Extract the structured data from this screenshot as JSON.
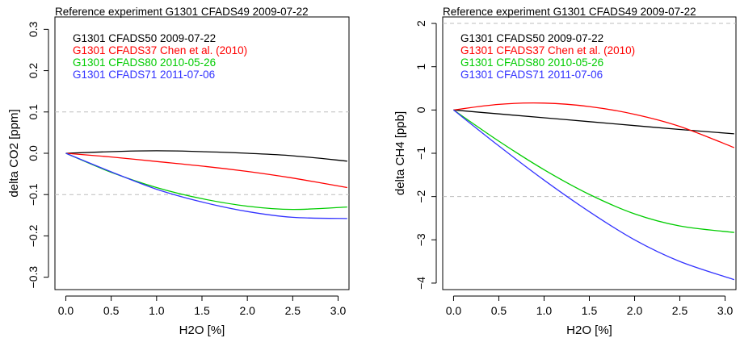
{
  "chart_data": [
    {
      "type": "line",
      "title": "Reference experiment G1301 CFADS49 2009-07-22",
      "xlabel": "H2O [%]",
      "ylabel": "delta CO2 [ppm]",
      "xlim": [
        -0.12,
        3.12
      ],
      "ylim": [
        -0.33,
        0.33
      ],
      "xticks": [
        0.0,
        0.5,
        1.0,
        1.5,
        2.0,
        2.5,
        3.0
      ],
      "xtick_labels": [
        "0.0",
        "0.5",
        "1.0",
        "1.5",
        "2.0",
        "2.5",
        "3.0"
      ],
      "yticks": [
        -0.3,
        -0.2,
        -0.1,
        0.0,
        0.1,
        0.2,
        0.3
      ],
      "ytick_labels": [
        "-0.3",
        "-0.2",
        "-0.1",
        "0.0",
        "0.1",
        "0.2",
        "0.3"
      ],
      "reference_lines_y": [
        0.1,
        -0.1
      ],
      "grid": false,
      "legend_position": "top-left",
      "series": [
        {
          "name": "G1301 CFADS50 2009-07-22",
          "color": "#000000",
          "x": [
            0.0,
            0.5,
            1.0,
            1.5,
            2.0,
            2.5,
            3.1
          ],
          "y": [
            0.0,
            0.004,
            0.006,
            0.004,
            0.0,
            -0.006,
            -0.019
          ]
        },
        {
          "name": "G1301 CFADS37 Chen et al. (2010)",
          "color": "#ff0000",
          "x": [
            0.0,
            0.5,
            1.0,
            1.5,
            2.0,
            2.5,
            3.1
          ],
          "y": [
            0.0,
            -0.009,
            -0.02,
            -0.031,
            -0.044,
            -0.06,
            -0.083
          ]
        },
        {
          "name": "G1301 CFADS80 2010-05-26",
          "color": "#00cc00",
          "x": [
            0.0,
            0.5,
            1.0,
            1.5,
            2.0,
            2.5,
            3.1
          ],
          "y": [
            0.0,
            -0.046,
            -0.083,
            -0.11,
            -0.128,
            -0.136,
            -0.13
          ]
        },
        {
          "name": "G1301 CFADS71 2011-07-06",
          "color": "#3333ff",
          "x": [
            0.0,
            0.5,
            1.0,
            1.5,
            2.0,
            2.5,
            3.1
          ],
          "y": [
            0.0,
            -0.045,
            -0.087,
            -0.118,
            -0.141,
            -0.155,
            -0.158
          ]
        }
      ]
    },
    {
      "type": "line",
      "title": "Reference experiment G1301 CFADS49 2009-07-22",
      "xlabel": "H2O [%]",
      "ylabel": "delta CH4 [ppb]",
      "xlim": [
        -0.12,
        3.12
      ],
      "ylim": [
        -4.15,
        2.15
      ],
      "xticks": [
        0.0,
        0.5,
        1.0,
        1.5,
        2.0,
        2.5,
        3.0
      ],
      "xtick_labels": [
        "0.0",
        "0.5",
        "1.0",
        "1.5",
        "2.0",
        "2.5",
        "3.0"
      ],
      "yticks": [
        -4,
        -3,
        -2,
        -1,
        0,
        1,
        2
      ],
      "ytick_labels": [
        "-4",
        "-3",
        "-2",
        "-1",
        "0",
        "1",
        "2"
      ],
      "reference_lines_y": [
        2,
        -2
      ],
      "grid": false,
      "legend_position": "top-left",
      "series": [
        {
          "name": "G1301 CFADS50 2009-07-22",
          "color": "#000000",
          "x": [
            0.0,
            0.5,
            1.0,
            1.5,
            2.0,
            2.5,
            3.1
          ],
          "y": [
            0.0,
            -0.09,
            -0.18,
            -0.27,
            -0.36,
            -0.45,
            -0.55
          ]
        },
        {
          "name": "G1301 CFADS37 Chen et al. (2010)",
          "color": "#ff0000",
          "x": [
            0.0,
            0.5,
            1.0,
            1.5,
            2.0,
            2.5,
            3.1
          ],
          "y": [
            0.0,
            0.13,
            0.16,
            0.08,
            -0.1,
            -0.38,
            -0.87
          ]
        },
        {
          "name": "G1301 CFADS80 2010-05-26",
          "color": "#00cc00",
          "x": [
            0.0,
            0.5,
            1.0,
            1.5,
            2.0,
            2.5,
            3.1
          ],
          "y": [
            0.0,
            -0.72,
            -1.38,
            -1.95,
            -2.4,
            -2.68,
            -2.83
          ]
        },
        {
          "name": "G1301 CFADS71 2011-07-06",
          "color": "#3333ff",
          "x": [
            0.0,
            0.5,
            1.0,
            1.5,
            2.0,
            2.5,
            3.1
          ],
          "y": [
            0.0,
            -0.83,
            -1.62,
            -2.35,
            -3.0,
            -3.5,
            -3.92
          ]
        }
      ]
    }
  ]
}
